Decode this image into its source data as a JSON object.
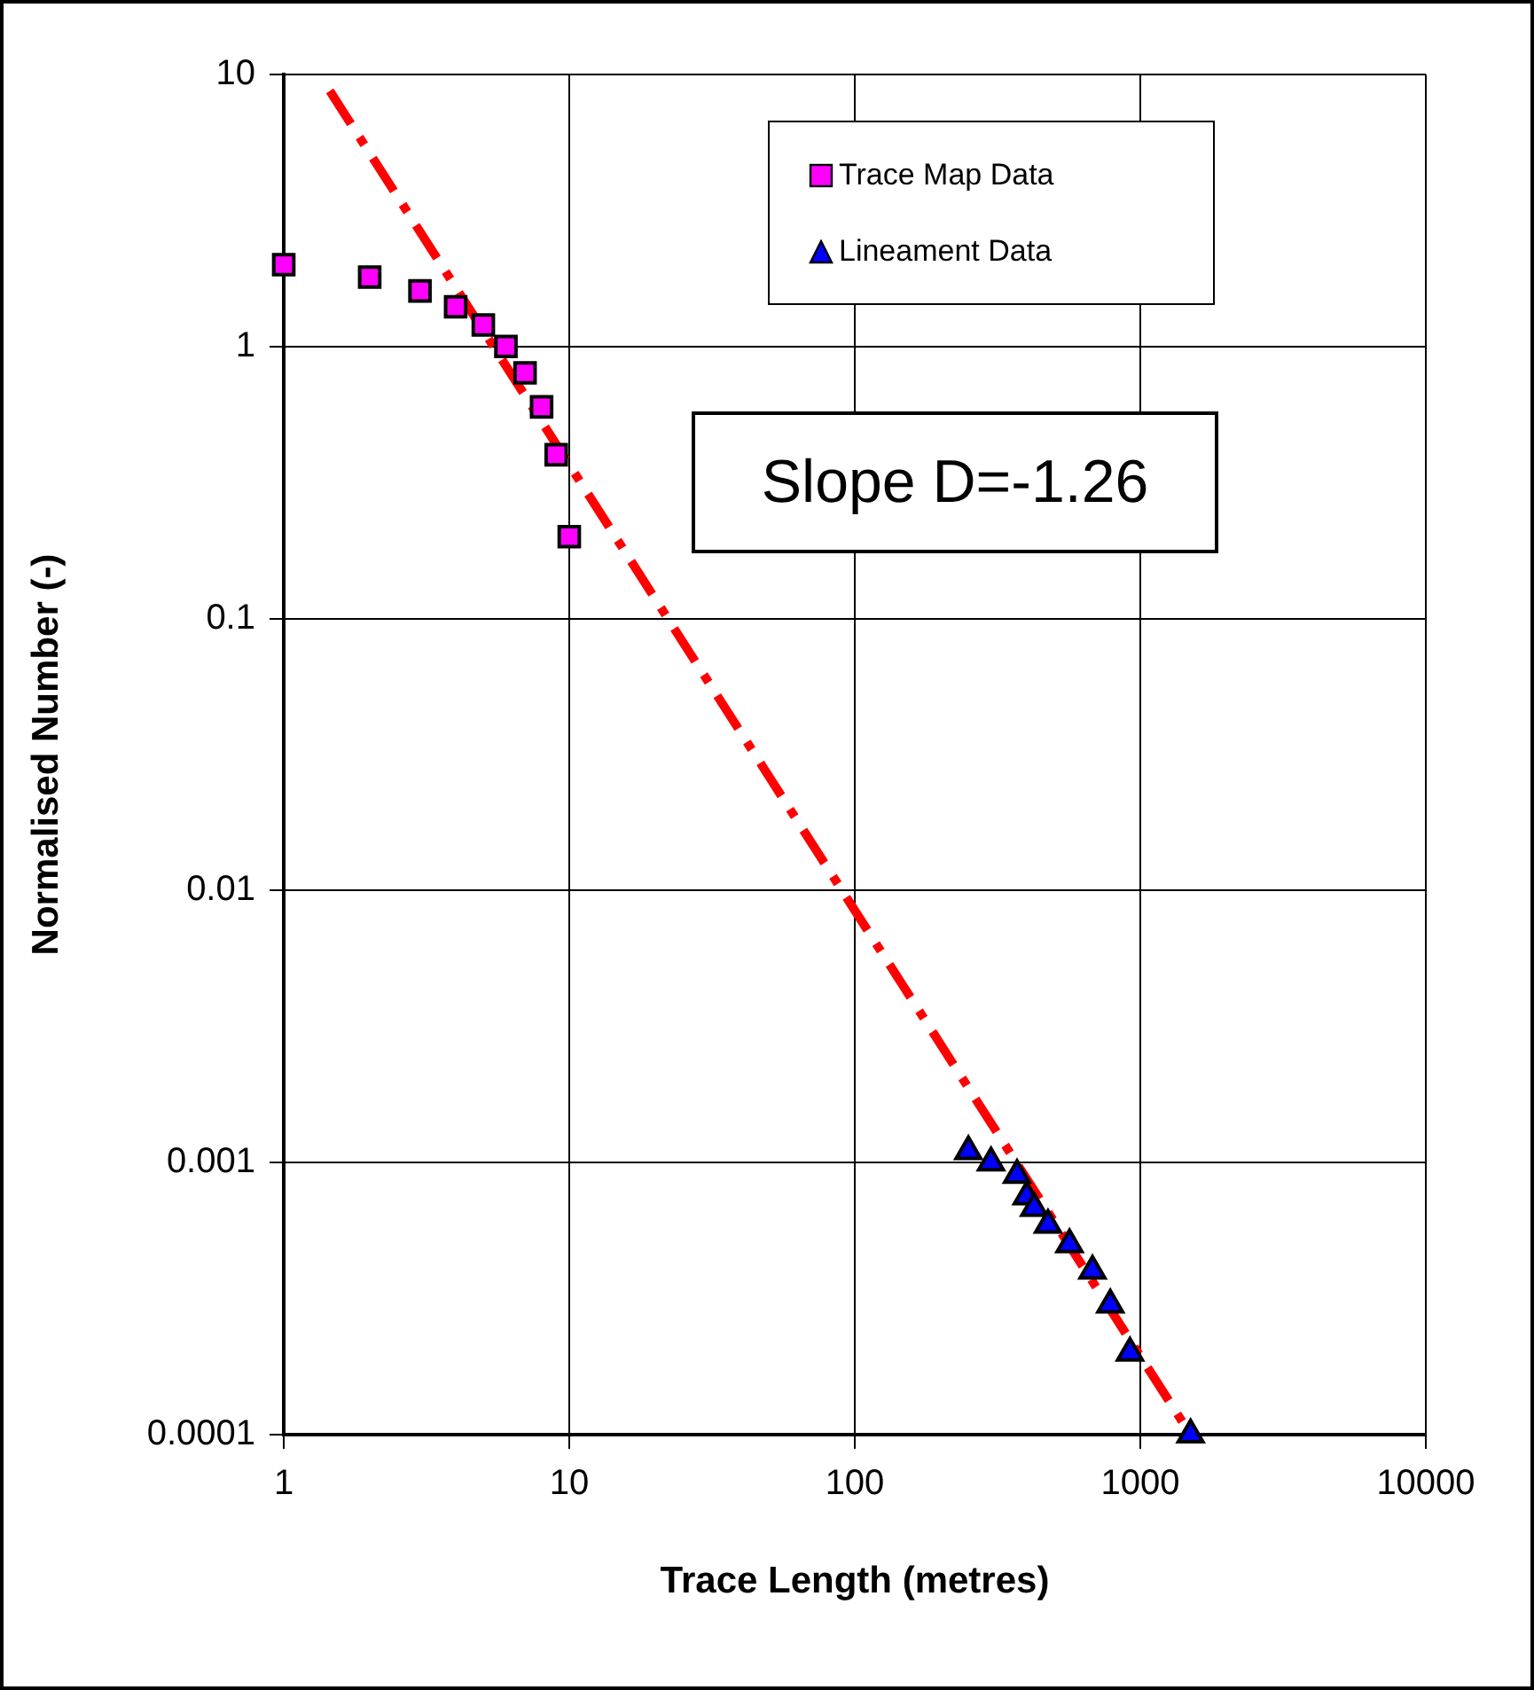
{
  "chart_data": {
    "type": "scatter",
    "xlabel": "Trace Length (metres)",
    "ylabel": "Normalised Number (-)",
    "log": "xy",
    "xlim": [
      1,
      10000
    ],
    "xticks": [
      1,
      10,
      100,
      1000,
      10000
    ],
    "ylim": [
      0.0001,
      10
    ],
    "yticks": [
      0.0001,
      0.001,
      0.01,
      0.1,
      1,
      10
    ],
    "grid": true,
    "legend": "top right",
    "annotations": [
      "Slope D=-1.26"
    ],
    "series": [
      {
        "name": "Trace Map Data",
        "color": "#ff00ff",
        "marker": "square",
        "x": [
          1,
          2,
          3,
          4,
          5,
          6,
          7,
          8,
          9,
          10
        ],
        "values": [
          2,
          1.8,
          1.6,
          1.4,
          1.2,
          1.0,
          0.8,
          0.6,
          0.4,
          0.2
        ]
      },
      {
        "name": "Lineament Data",
        "color": "#0000ff",
        "marker": "triangle",
        "x": [
          250,
          300,
          370,
          400,
          425,
          475,
          565,
          680,
          785,
          920,
          1500
        ],
        "values": [
          0.0011,
          0.001,
          0.0009,
          0.00075,
          0.00068,
          0.00059,
          0.0005,
          0.0004,
          0.0003,
          0.0002,
          0.0001
        ]
      },
      {
        "type": "line",
        "color": "#ff0000",
        "line_style": "dashed",
        "marker": "none",
        "x": [
          1.45,
          1500
        ],
        "values": [
          8.7,
          0.0001
        ]
      }
    ]
  }
}
